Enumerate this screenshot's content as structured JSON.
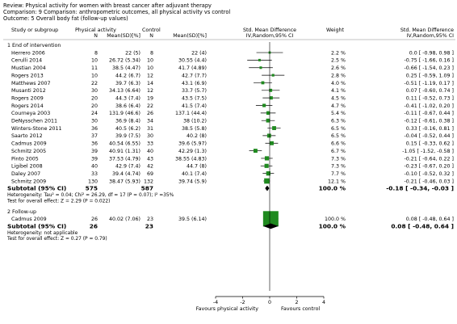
{
  "header": {
    "review": "Review:  Physical activity for women with breast cancer after adjuvant therapy",
    "comparison": "Comparison:  9 Comparison: anthropometric outcomes, all physical activity vs control",
    "outcome": "Outcome:  5 Overall body fat (follow-up values)"
  },
  "columns": {
    "study": "Study or subgroup",
    "pa": "Physical activity",
    "ctrl": "Control",
    "n": "N",
    "meansd": "Mean(SD)[%]",
    "smd1": "Std. Mean Difference",
    "smd2": "IV,Random,95% CI",
    "weight": "Weight",
    "smd_r1": "Std. Mean Difference",
    "smd_r2": "IV,Random,95% CI"
  },
  "colors": {
    "marker": "#1f8a1f",
    "line": "#000000"
  },
  "chart_data": {
    "type": "forest",
    "xlim": [
      -4,
      4
    ],
    "ticks": [
      "-4",
      "-2",
      "0",
      "2",
      "4"
    ],
    "favours_left": "Favours physical activity",
    "favours_right": "Favours control",
    "subgroups": [
      {
        "label": "1 End of intervention",
        "studies": [
          {
            "name": "Herrero 2006",
            "pa_n": "8",
            "pa_m": "22 (5)",
            "c_n": "8",
            "c_m": "22 (4)",
            "w": "2.2 %",
            "ci_text": "0.0 [ -0.98, 0.98 ]",
            "est": 0.0,
            "lo": -0.98,
            "hi": 0.98,
            "wv": 2.2
          },
          {
            "name": "Cerulli 2014",
            "pa_n": "10",
            "pa_m": "26.72 (5.34)",
            "c_n": "10",
            "c_m": "30.55 (4.4)",
            "w": "2.5 %",
            "ci_text": "-0.75 [ -1.66, 0.16 ]",
            "est": -0.75,
            "lo": -1.66,
            "hi": 0.16,
            "wv": 2.5
          },
          {
            "name": "Mustian 2004",
            "pa_n": "11",
            "pa_m": "38.5 (4.47)",
            "c_n": "10",
            "c_m": "41.7 (4.89)",
            "w": "2.6 %",
            "ci_text": "-0.66 [ -1.54, 0.23 ]",
            "est": -0.66,
            "lo": -1.54,
            "hi": 0.23,
            "wv": 2.6
          },
          {
            "name": "Rogers 2013",
            "pa_n": "10",
            "pa_m": "44.2 (6.7)",
            "c_n": "12",
            "c_m": "42.7 (7.7)",
            "w": "2.8 %",
            "ci_text": "0.25 [ -0.59, 1.09 ]",
            "est": 0.25,
            "lo": -0.59,
            "hi": 1.09,
            "wv": 2.8
          },
          {
            "name": "Matthews 2007",
            "pa_n": "22",
            "pa_m": "39.7 (6.3)",
            "c_n": "14",
            "c_m": "43.1 (6.9)",
            "w": "4.0 %",
            "ci_text": "-0.51 [ -1.19, 0.17 ]",
            "est": -0.51,
            "lo": -1.19,
            "hi": 0.17,
            "wv": 4.0
          },
          {
            "name": "Musanti 2012",
            "pa_n": "30",
            "pa_m": "34.13 (6.64)",
            "c_n": "12",
            "c_m": "33.7 (5.7)",
            "w": "4.1 %",
            "ci_text": "0.07 [ -0.60, 0.74 ]",
            "est": 0.07,
            "lo": -0.6,
            "hi": 0.74,
            "wv": 4.1
          },
          {
            "name": "Rogers 2009",
            "pa_n": "20",
            "pa_m": "44.3 (7.4)",
            "c_n": "19",
            "c_m": "43.5 (7.5)",
            "w": "4.5 %",
            "ci_text": "0.11 [ -0.52, 0.73 ]",
            "est": 0.11,
            "lo": -0.52,
            "hi": 0.73,
            "wv": 4.5
          },
          {
            "name": "Rogers 2014",
            "pa_n": "20",
            "pa_m": "38.6 (6.4)",
            "c_n": "22",
            "c_m": "41.5 (7.4)",
            "w": "4.7 %",
            "ci_text": "-0.41 [ -1.02, 0.20 ]",
            "est": -0.41,
            "lo": -1.02,
            "hi": 0.2,
            "wv": 4.7
          },
          {
            "name": "Courneya 2003",
            "pa_n": "24",
            "pa_m": "131.9 (46.6)",
            "c_n": "26",
            "c_m": "137.1 (44.4)",
            "w": "5.4 %",
            "ci_text": "-0.11 [ -0.67, 0.44 ]",
            "est": -0.11,
            "lo": -0.67,
            "hi": 0.44,
            "wv": 5.4
          },
          {
            "name": "DeNysschen 2011",
            "pa_n": "30",
            "pa_m": "36.9 (8.4)",
            "c_n": "34",
            "c_m": "38 (10.2)",
            "w": "6.3 %",
            "ci_text": "-0.12 [ -0.61, 0.38 ]",
            "est": -0.12,
            "lo": -0.61,
            "hi": 0.38,
            "wv": 6.3
          },
          {
            "name": "Winters-Stone 2011",
            "pa_n": "36",
            "pa_m": "40.5 (6.2)",
            "c_n": "31",
            "c_m": "38.5 (5.8)",
            "w": "6.5 %",
            "ci_text": "0.33 [ -0.16, 0.81 ]",
            "est": 0.33,
            "lo": -0.16,
            "hi": 0.81,
            "wv": 6.5
          },
          {
            "name": "Saarto 2012",
            "pa_n": "37",
            "pa_m": "39.9 (7.5)",
            "c_n": "30",
            "c_m": "40.2 (8)",
            "w": "6.5 %",
            "ci_text": "-0.04 [ -0.52, 0.44 ]",
            "est": -0.04,
            "lo": -0.52,
            "hi": 0.44,
            "wv": 6.5
          },
          {
            "name": "Cadmus 2009",
            "pa_n": "36",
            "pa_m": "40.54 (6.55)",
            "c_n": "33",
            "c_m": "39.6 (5.97)",
            "w": "6.6 %",
            "ci_text": "0.15 [ -0.33, 0.62 ]",
            "est": 0.15,
            "lo": -0.33,
            "hi": 0.62,
            "wv": 6.6
          },
          {
            "name": "Schmitz 2005",
            "pa_n": "39",
            "pa_m": "40.91 (1.31)",
            "c_n": "40",
            "c_m": "42.29 (1.3)",
            "w": "6.7 %",
            "ci_text": "-1.05 [ -1.52, -0.58 ]",
            "est": -1.05,
            "lo": -1.52,
            "hi": -0.58,
            "wv": 6.7
          },
          {
            "name": "Pinto 2005",
            "pa_n": "39",
            "pa_m": "37.53 (4.79)",
            "c_n": "43",
            "c_m": "38.55 (4.83)",
            "w": "7.3 %",
            "ci_text": "-0.21 [ -0.64, 0.22 ]",
            "est": -0.21,
            "lo": -0.64,
            "hi": 0.22,
            "wv": 7.3
          },
          {
            "name": "Ligibel 2008",
            "pa_n": "40",
            "pa_m": "42.9 (7.4)",
            "c_n": "42",
            "c_m": "44.7 (8)",
            "w": "7.3 %",
            "ci_text": "-0.23 [ -0.67, 0.20 ]",
            "est": -0.23,
            "lo": -0.67,
            "hi": 0.2,
            "wv": 7.3
          },
          {
            "name": "Daley 2007",
            "pa_n": "33",
            "pa_m": "39.4 (4.74)",
            "c_n": "69",
            "c_m": "40.1 (7.4)",
            "w": "7.7 %",
            "ci_text": "-0.10 [ -0.52, 0.32 ]",
            "est": -0.1,
            "lo": -0.52,
            "hi": 0.32,
            "wv": 7.7
          },
          {
            "name": "Schmitz 2009",
            "pa_n": "130",
            "pa_m": "38.47 (5.93)",
            "c_n": "132",
            "c_m": "39.74 (5.9)",
            "w": "12.1 %",
            "ci_text": "-0.21 [ -0.46, 0.03 ]",
            "est": -0.21,
            "lo": -0.46,
            "hi": 0.03,
            "wv": 12.1
          }
        ],
        "subtotal": {
          "label": "Subtotal (95% CI)",
          "pa_n": "575",
          "c_n": "587",
          "w": "100.0 %",
          "ci_text": "-0.18 [ -0.34, -0.03 ]",
          "est": -0.18,
          "lo": -0.34,
          "hi": -0.03
        },
        "heterogeneity": "Heterogeneity: Tau² = 0.04; Chi² = 26.29, df = 17 (P = 0.07); I² =35%",
        "overall": "Test for overall effect: Z = 2.29 (P = 0.022)"
      },
      {
        "label": "2 Follow-up",
        "studies": [
          {
            "name": "Cadmus 2009",
            "pa_n": "26",
            "pa_m": "40.02 (7.06)",
            "c_n": "23",
            "c_m": "39.5 (6.14)",
            "w": "100.0 %",
            "ci_text": "0.08 [ -0.48, 0.64 ]",
            "est": 0.08,
            "lo": -0.48,
            "hi": 0.64,
            "wv": 100.0
          }
        ],
        "subtotal": {
          "label": "Subtotal (95% CI)",
          "pa_n": "26",
          "c_n": "23",
          "w": "100.0 %",
          "ci_text": "0.08 [ -0.48, 0.64 ]",
          "est": 0.08,
          "lo": -0.48,
          "hi": 0.64
        },
        "heterogeneity": "Heterogeneity: not applicable",
        "overall": "Test for overall effect: Z = 0.27 (P = 0.79)"
      }
    ]
  }
}
